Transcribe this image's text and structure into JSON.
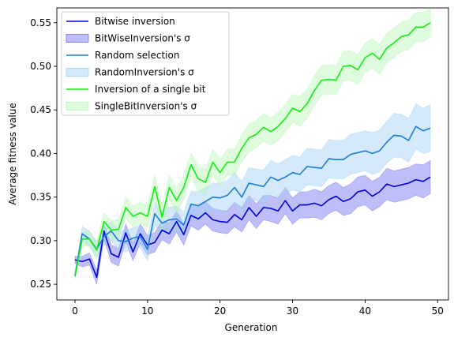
{
  "chart_data": {
    "type": "line",
    "title": "",
    "xlabel": "Generation",
    "ylabel": "Average fitness value",
    "xlim": [
      -2.5,
      51.5
    ],
    "ylim": [
      0.232,
      0.567
    ],
    "xticks": [
      0,
      10,
      20,
      30,
      40,
      50
    ],
    "yticks": [
      0.25,
      0.3,
      0.35,
      0.4,
      0.45,
      0.5,
      0.55
    ],
    "ytick_labels": [
      "0.25",
      "0.30",
      "0.35",
      "0.40",
      "0.45",
      "0.50",
      "0.55"
    ],
    "grid": false,
    "legend_position": "top-left",
    "x": [
      0,
      1,
      2,
      3,
      4,
      5,
      6,
      7,
      8,
      9,
      10,
      11,
      12,
      13,
      14,
      15,
      16,
      17,
      18,
      19,
      20,
      21,
      22,
      23,
      24,
      25,
      26,
      27,
      28,
      29,
      30,
      31,
      32,
      33,
      34,
      35,
      36,
      37,
      38,
      39,
      40,
      41,
      42,
      43,
      44,
      45,
      46,
      47,
      48,
      49
    ],
    "series": [
      {
        "name": "Bitwise inversion",
        "band_name": "BitWiseInversion's σ",
        "color": "#0000dd",
        "band_color": "#6f6ff0",
        "values": [
          0.278,
          0.276,
          0.279,
          0.258,
          0.311,
          0.285,
          0.281,
          0.309,
          0.287,
          0.308,
          0.295,
          0.298,
          0.312,
          0.308,
          0.322,
          0.307,
          0.329,
          0.325,
          0.332,
          0.324,
          0.322,
          0.321,
          0.33,
          0.324,
          0.338,
          0.328,
          0.338,
          0.337,
          0.334,
          0.346,
          0.334,
          0.341,
          0.341,
          0.343,
          0.34,
          0.347,
          0.351,
          0.345,
          0.348,
          0.356,
          0.358,
          0.351,
          0.356,
          0.365,
          0.362,
          0.364,
          0.366,
          0.37,
          0.368,
          0.373
        ],
        "sigma": [
          0.004,
          0.006,
          0.007,
          0.008,
          0.009,
          0.01,
          0.01,
          0.01,
          0.01,
          0.011,
          0.011,
          0.011,
          0.011,
          0.012,
          0.012,
          0.012,
          0.012,
          0.013,
          0.013,
          0.013,
          0.013,
          0.013,
          0.014,
          0.014,
          0.014,
          0.014,
          0.014,
          0.015,
          0.015,
          0.015,
          0.015,
          0.015,
          0.015,
          0.016,
          0.016,
          0.016,
          0.016,
          0.016,
          0.017,
          0.017,
          0.017,
          0.017,
          0.017,
          0.018,
          0.018,
          0.018,
          0.018,
          0.018,
          0.019,
          0.019
        ]
      },
      {
        "name": "Random selection",
        "band_name": "RandomInversion's σ",
        "color": "#1a7bd8",
        "band_color": "#9fd0f6",
        "values": [
          0.26,
          0.308,
          0.302,
          0.29,
          0.305,
          0.311,
          0.3,
          0.299,
          0.303,
          0.305,
          0.29,
          0.331,
          0.32,
          0.324,
          0.325,
          0.318,
          0.342,
          0.34,
          0.345,
          0.35,
          0.349,
          0.352,
          0.361,
          0.35,
          0.366,
          0.364,
          0.362,
          0.373,
          0.369,
          0.373,
          0.378,
          0.376,
          0.385,
          0.384,
          0.383,
          0.394,
          0.393,
          0.393,
          0.399,
          0.401,
          0.403,
          0.4,
          0.403,
          0.413,
          0.421,
          0.42,
          0.415,
          0.431,
          0.426,
          0.429
        ],
        "sigma": [
          0.003,
          0.008,
          0.009,
          0.009,
          0.01,
          0.011,
          0.011,
          0.012,
          0.012,
          0.013,
          0.013,
          0.013,
          0.014,
          0.014,
          0.015,
          0.015,
          0.015,
          0.016,
          0.016,
          0.016,
          0.017,
          0.017,
          0.017,
          0.018,
          0.018,
          0.018,
          0.019,
          0.019,
          0.019,
          0.02,
          0.02,
          0.02,
          0.021,
          0.021,
          0.021,
          0.022,
          0.022,
          0.022,
          0.023,
          0.023,
          0.023,
          0.024,
          0.024,
          0.024,
          0.025,
          0.025,
          0.025,
          0.026,
          0.026,
          0.027
        ]
      },
      {
        "name": "Inversion of a single bit",
        "band_name": "SingleBitInversion's σ",
        "color": "#11ee11",
        "band_color": "#b6f7b6",
        "values": [
          0.259,
          0.302,
          0.302,
          0.289,
          0.322,
          0.312,
          0.313,
          0.338,
          0.328,
          0.332,
          0.328,
          0.362,
          0.327,
          0.361,
          0.346,
          0.361,
          0.387,
          0.371,
          0.367,
          0.39,
          0.378,
          0.39,
          0.39,
          0.406,
          0.418,
          0.422,
          0.43,
          0.425,
          0.431,
          0.44,
          0.452,
          0.448,
          0.457,
          0.472,
          0.484,
          0.485,
          0.484,
          0.5,
          0.501,
          0.496,
          0.51,
          0.515,
          0.508,
          0.521,
          0.527,
          0.534,
          0.536,
          0.545,
          0.545,
          0.55
        ],
        "sigma": [
          0.003,
          0.008,
          0.009,
          0.01,
          0.01,
          0.011,
          0.011,
          0.012,
          0.012,
          0.012,
          0.013,
          0.013,
          0.013,
          0.014,
          0.014,
          0.014,
          0.014,
          0.015,
          0.015,
          0.015,
          0.015,
          0.015,
          0.015,
          0.016,
          0.016,
          0.016,
          0.016,
          0.016,
          0.016,
          0.016,
          0.016,
          0.017,
          0.017,
          0.017,
          0.017,
          0.017,
          0.017,
          0.017,
          0.017,
          0.017,
          0.017,
          0.017,
          0.017,
          0.017,
          0.017,
          0.017,
          0.017,
          0.017,
          0.017,
          0.016
        ]
      }
    ]
  }
}
